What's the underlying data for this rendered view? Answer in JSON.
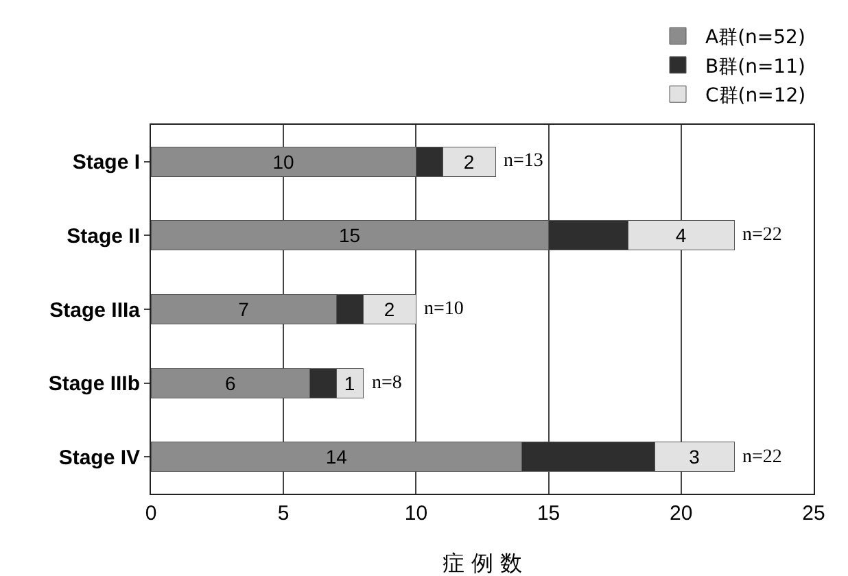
{
  "chart_data": {
    "type": "bar",
    "orientation": "horizontal",
    "stacked": true,
    "xlabel": "症 例 数",
    "categories": [
      "Stage I",
      "Stage II",
      "Stage IIIa",
      "Stage IIIb",
      "Stage IV"
    ],
    "series": [
      {
        "name": "A群(n=52)",
        "color": "#8c8c8c",
        "values": [
          10,
          15,
          7,
          6,
          14
        ],
        "value_labels": [
          "10",
          "15",
          "7",
          "6",
          "14"
        ]
      },
      {
        "name": "B群(n=11)",
        "color": "#2e2e2e",
        "values": [
          1,
          3,
          1,
          1,
          5
        ],
        "value_labels": [
          null,
          null,
          null,
          null,
          null
        ]
      },
      {
        "name": "C群(n=12)",
        "color": "#e2e2e2",
        "values": [
          2,
          4,
          2,
          1,
          3
        ],
        "value_labels": [
          "2",
          "4",
          "2",
          "1",
          "3"
        ]
      }
    ],
    "totals": [
      "n=13",
      "n=22",
      "n=10",
      "n=8",
      "n=22"
    ],
    "xlim": [
      0,
      25
    ],
    "xticks": [
      0,
      5,
      10,
      15,
      20,
      25
    ],
    "grid": "x",
    "legend": "top right"
  }
}
